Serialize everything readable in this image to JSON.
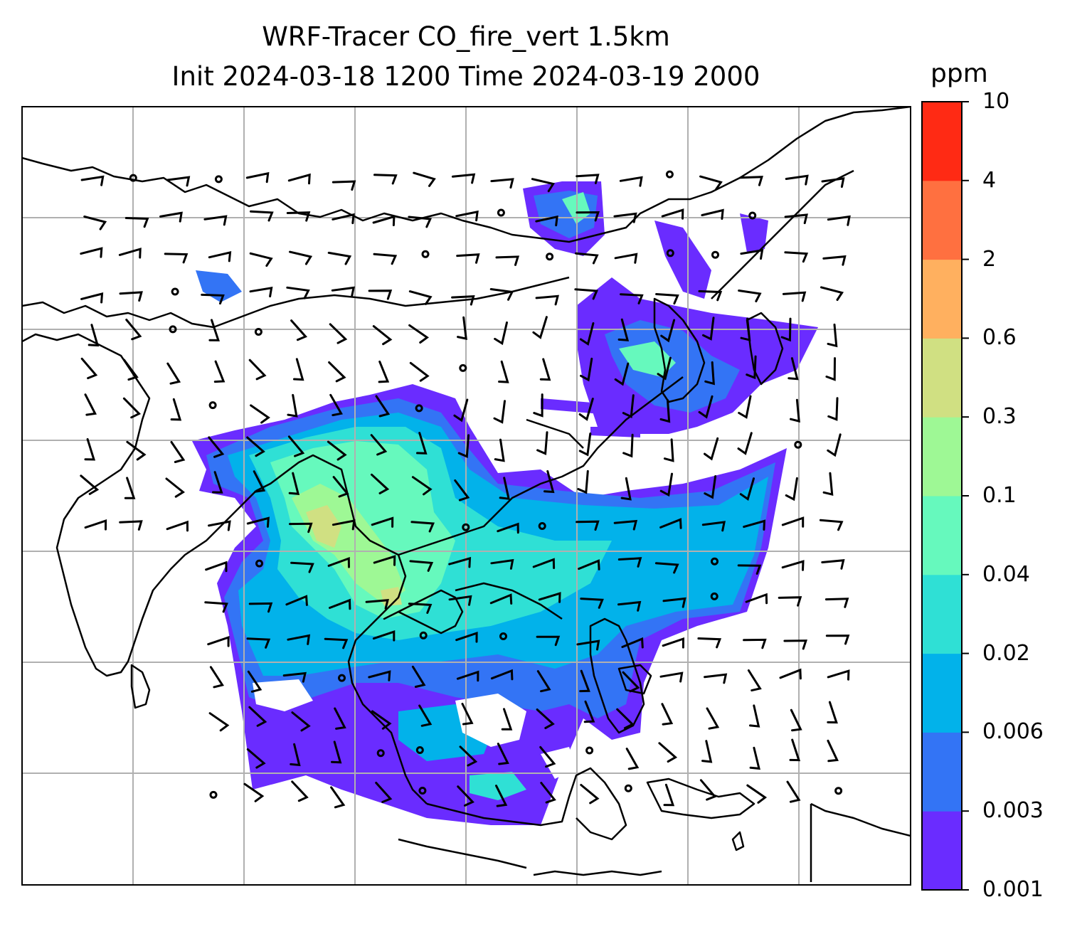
{
  "title": {
    "line1": "WRF-Tracer CO_fire_vert 1.5km",
    "line2": "Init 2024-03-18 1200 Time 2024-03-19 2000"
  },
  "colorbar": {
    "unit": "ppm",
    "levels": [
      "0.001",
      "0.003",
      "0.006",
      "0.02",
      "0.04",
      "0.1",
      "0.3",
      "0.6",
      "2",
      "4",
      "10"
    ],
    "colors": [
      "#6a2cff",
      "#3374f5",
      "#02b2ea",
      "#2fe0d5",
      "#66f9bd",
      "#9ef895",
      "#d0e082",
      "#ffb05f",
      "#ff7040",
      "#ff2a14"
    ]
  },
  "map": {
    "gridlines": true,
    "wind_barbs": true,
    "field": "CO_fire_vert",
    "coastline_color": "#000000",
    "grid_color": "#b0b0b0"
  }
}
